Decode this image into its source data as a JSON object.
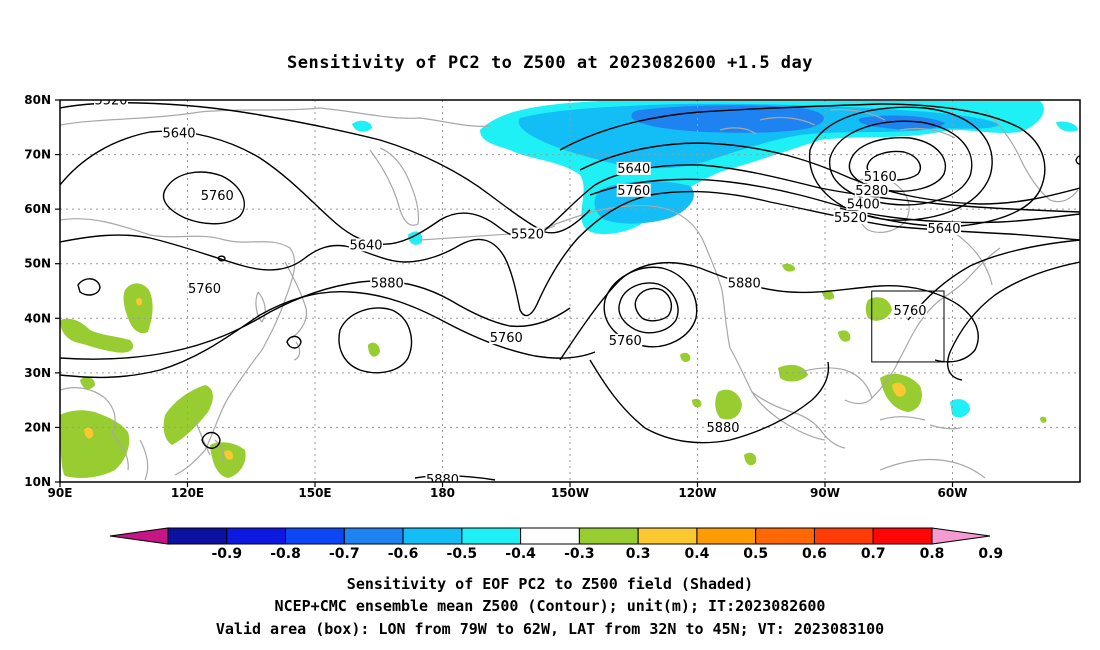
{
  "title": "Sensitivity of PC2 to Z500 at 2023082600 +1.5 day",
  "map": {
    "lat_ticks": [
      "80N",
      "70N",
      "60N",
      "50N",
      "40N",
      "30N",
      "20N",
      "10N"
    ],
    "lon_ticks": [
      "90E",
      "120E",
      "150E",
      "180",
      "150W",
      "120W",
      "90W",
      "60W"
    ],
    "contour_labels": [
      {
        "text": "5520",
        "lon": 102,
        "lat": 79.5
      },
      {
        "text": "5640",
        "lon": 118,
        "lat": 73.5
      },
      {
        "text": "5760",
        "lon": 127,
        "lat": 62
      },
      {
        "text": "5760",
        "lon": 124,
        "lat": 45
      },
      {
        "text": "5640",
        "lon": 162,
        "lat": 53
      },
      {
        "text": "5880",
        "lon": 167,
        "lat": 46
      },
      {
        "text": "5760",
        "lon": 195,
        "lat": 36
      },
      {
        "text": "5520",
        "lon": 200,
        "lat": 55
      },
      {
        "text": "5640",
        "lon": 225,
        "lat": 67
      },
      {
        "text": "5760",
        "lon": 225,
        "lat": 63
      },
      {
        "text": "5760",
        "lon": 223,
        "lat": 35.5
      },
      {
        "text": "5880",
        "lon": 251,
        "lat": 46
      },
      {
        "text": "5880",
        "lon": 246,
        "lat": 19.5
      },
      {
        "text": "5160",
        "lon": 283,
        "lat": 65.5
      },
      {
        "text": "5280",
        "lon": 281,
        "lat": 63
      },
      {
        "text": "5400",
        "lon": 279,
        "lat": 60.5
      },
      {
        "text": "5520",
        "lon": 276,
        "lat": 58
      },
      {
        "text": "5640",
        "lon": 298,
        "lat": 56
      },
      {
        "text": "5760",
        "lon": 290,
        "lat": 41
      },
      {
        "text": "5880",
        "lon": 180,
        "lat": 10
      }
    ],
    "valid_box": {
      "lon_min": 281,
      "lon_max": 298,
      "lat_min": 32,
      "lat_max": 45
    }
  },
  "colorbar": {
    "colors": [
      "#c71585",
      "#0a10a0",
      "#0c19e0",
      "#0d47f5",
      "#1e82f0",
      "#12bef5",
      "#1ef0f5",
      "#ffffff",
      "#98cd32",
      "#fcc832",
      "#ff9b05",
      "#ff6805",
      "#ff3c05",
      "#ff0505",
      "#f59ad2"
    ],
    "labels": [
      "-0.9",
      "-0.8",
      "-0.7",
      "-0.6",
      "-0.5",
      "-0.4",
      "-0.3",
      "0.3",
      "0.4",
      "0.5",
      "0.6",
      "0.7",
      "0.8",
      "0.9"
    ]
  },
  "footer": [
    "Sensitivity of EOF PC2 to Z500 field (Shaded)",
    "NCEP+CMC ensemble mean Z500 (Contour); unit(m); IT:2023082600",
    "Valid area (box): LON from 79W to 62W, LAT from 32N to 45N; VT: 2023083100"
  ]
}
